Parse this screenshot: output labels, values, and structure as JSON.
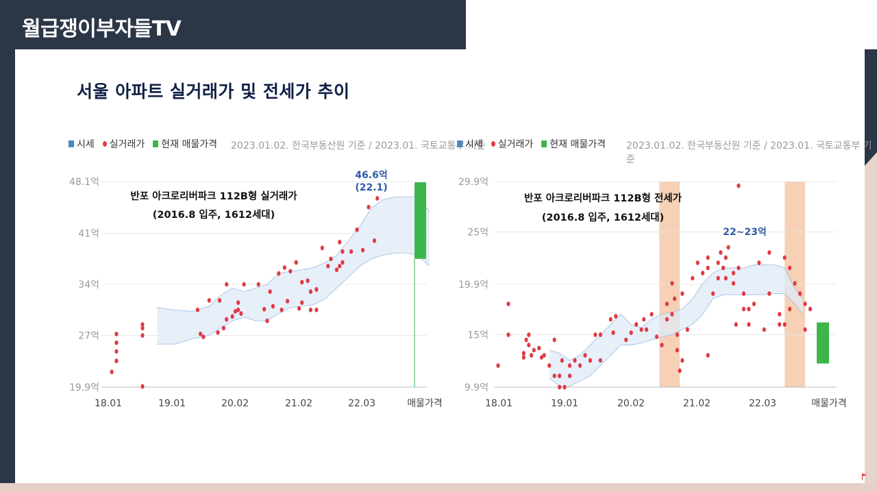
{
  "channel": {
    "title": "월급쟁이부자들TV"
  },
  "slide": {
    "title": "서울 아파트 실거래가 및 전세가 추이"
  },
  "colors": {
    "band": "#dfe9f7",
    "band_line": "#8aaedc",
    "dot": "#e03a46",
    "listing": "#3cb64a",
    "highlight": "#f5c9a8",
    "annotation": "#2f5ba8",
    "dark": "#2b3647"
  },
  "chart_data": [
    {
      "type": "scatter",
      "title": "반포 아크로리버파크 112B형 실거래가",
      "subtitle": "(2016.8 입주, 1612세대)",
      "legend": {
        "band": "시세",
        "dots": "실거래가",
        "bar": "현재 매물가격"
      },
      "source": "2023.01.02. 한국부동산원 기준 / 2023.01. 국토교통부 기준",
      "y_ticks": [
        "48.1억",
        "41억",
        "34억",
        "27억",
        "19.9억"
      ],
      "y_tick_values": [
        48.1,
        41,
        34,
        27,
        19.9
      ],
      "ylim": [
        19.9,
        48.1
      ],
      "x_ticks": [
        "18.01",
        "19.01",
        "20.02",
        "21.02",
        "22.03",
        "매물가격"
      ],
      "x_tick_values": [
        0,
        12,
        25,
        37,
        50
      ],
      "annotation": {
        "line1": "46.6억",
        "line2": "(22.1)"
      },
      "band": [
        {
          "x": 9,
          "lo": 25.8,
          "hi": 30.8
        },
        {
          "x": 12,
          "lo": 25.8,
          "hi": 30.5
        },
        {
          "x": 15,
          "lo": 26.5,
          "hi": 30.3
        },
        {
          "x": 18,
          "lo": 27.0,
          "hi": 31.0
        },
        {
          "x": 20,
          "lo": 28.0,
          "hi": 32.5
        },
        {
          "x": 22,
          "lo": 29.0,
          "hi": 33.5
        },
        {
          "x": 24,
          "lo": 29.5,
          "hi": 33.0
        },
        {
          "x": 26,
          "lo": 29.0,
          "hi": 33.5
        },
        {
          "x": 28,
          "lo": 29.0,
          "hi": 34.0
        },
        {
          "x": 30,
          "lo": 30.0,
          "hi": 35.5
        },
        {
          "x": 32,
          "lo": 30.8,
          "hi": 35.8
        },
        {
          "x": 34,
          "lo": 31.0,
          "hi": 36.0
        },
        {
          "x": 36,
          "lo": 31.2,
          "hi": 36.3
        },
        {
          "x": 38,
          "lo": 32.0,
          "hi": 37.0
        },
        {
          "x": 40,
          "lo": 33.5,
          "hi": 38.0
        },
        {
          "x": 42,
          "lo": 35.0,
          "hi": 40.0
        },
        {
          "x": 44,
          "lo": 36.5,
          "hi": 42.0
        },
        {
          "x": 46,
          "lo": 37.5,
          "hi": 44.5
        },
        {
          "x": 48,
          "lo": 38.0,
          "hi": 45.6
        },
        {
          "x": 50,
          "lo": 38.3,
          "hi": 46.0
        },
        {
          "x": 52,
          "lo": 38.3,
          "hi": 46.0
        },
        {
          "x": 54,
          "lo": 38.0,
          "hi": 46.0
        },
        {
          "x": 56,
          "lo": 36.5,
          "hi": 44.0
        }
      ],
      "dots": [
        [
          1.2,
          22.0
        ],
        [
          2,
          23.5
        ],
        [
          2,
          24.8
        ],
        [
          2,
          26.0
        ],
        [
          2,
          27.2
        ],
        [
          6.5,
          27.0
        ],
        [
          6.5,
          28.0
        ],
        [
          6.5,
          28.5
        ],
        [
          6.5,
          20.0
        ],
        [
          16,
          30.5
        ],
        [
          16.5,
          27.2
        ],
        [
          17,
          26.8
        ],
        [
          18,
          31.8
        ],
        [
          19.5,
          27.4
        ],
        [
          19.8,
          31.8
        ],
        [
          20.5,
          28.0
        ],
        [
          21,
          29.2
        ],
        [
          21,
          34.0
        ],
        [
          22,
          29.6
        ],
        [
          22.5,
          30.3
        ],
        [
          23,
          31.5
        ],
        [
          23,
          30.5
        ],
        [
          23.5,
          30.0
        ],
        [
          24,
          34.0
        ],
        [
          26.5,
          34.0
        ],
        [
          27.5,
          30.6
        ],
        [
          28,
          29.0
        ],
        [
          28.5,
          33.0
        ],
        [
          29,
          31.0
        ],
        [
          30,
          35.5
        ],
        [
          30.5,
          30.5
        ],
        [
          31.5,
          31.7
        ],
        [
          31,
          36.3
        ],
        [
          32,
          35.8
        ],
        [
          33,
          37.0
        ],
        [
          33.5,
          30.7
        ],
        [
          34,
          31.5
        ],
        [
          34,
          34.3
        ],
        [
          35,
          34.5
        ],
        [
          35.5,
          30.5
        ],
        [
          35.5,
          33.0
        ],
        [
          36.5,
          30.5
        ],
        [
          36.5,
          33.3
        ],
        [
          37.5,
          39.0
        ],
        [
          38.5,
          36.5
        ],
        [
          39,
          37.5
        ],
        [
          40,
          36.0
        ],
        [
          40.5,
          39.8
        ],
        [
          40.5,
          36.5
        ],
        [
          41,
          38.5
        ],
        [
          41,
          37.0
        ],
        [
          42.5,
          38.5
        ],
        [
          43.5,
          41.5
        ],
        [
          44.5,
          38.7
        ],
        [
          45.5,
          44.6
        ],
        [
          46.5,
          40.0
        ],
        [
          47,
          45.8
        ]
      ],
      "listing": {
        "lo": 37.5,
        "hi": 48.0
      }
    },
    {
      "type": "scatter",
      "title": "반포 아크로리버파크 112B형 전세가",
      "subtitle": "(2016.8 입주, 1612세대)",
      "legend": {
        "band": "시세",
        "dots": "실거래가",
        "bar": "현재 매물가격"
      },
      "source": "2023.01.02. 한국부동산원 기준 / 2023.01. 국토교통부 기준",
      "y_ticks": [
        "29.9억",
        "25억",
        "19.9억",
        "15억",
        "9.9억"
      ],
      "y_tick_values": [
        29.9,
        25,
        19.9,
        15,
        9.9
      ],
      "ylim": [
        9.9,
        29.9
      ],
      "x_ticks": [
        "18.01",
        "19.01",
        "20.02",
        "21.02",
        "22.03",
        "매물가격"
      ],
      "x_tick_values": [
        0,
        12,
        25,
        37,
        50
      ],
      "annotation": {
        "line1": "22~23억"
      },
      "highlight_ranges": [
        [
          31.5,
          35.5
        ],
        [
          56,
          60
        ]
      ],
      "band": [
        {
          "x": 10,
          "lo": 10.8,
          "hi": 13.5
        },
        {
          "x": 12,
          "lo": 10.0,
          "hi": 13.2
        },
        {
          "x": 14,
          "lo": 10.0,
          "hi": 12.5
        },
        {
          "x": 16,
          "lo": 10.5,
          "hi": 13.0
        },
        {
          "x": 18,
          "lo": 11.0,
          "hi": 14.0
        },
        {
          "x": 20,
          "lo": 12.0,
          "hi": 15.0
        },
        {
          "x": 22,
          "lo": 13.0,
          "hi": 16.0
        },
        {
          "x": 24,
          "lo": 14.0,
          "hi": 17.0
        },
        {
          "x": 26,
          "lo": 14.0,
          "hi": 16.0
        },
        {
          "x": 28,
          "lo": 14.2,
          "hi": 15.7
        },
        {
          "x": 30,
          "lo": 14.5,
          "hi": 16.5
        },
        {
          "x": 32,
          "lo": 14.8,
          "hi": 17.0
        },
        {
          "x": 34,
          "lo": 15.0,
          "hi": 17.2
        },
        {
          "x": 36,
          "lo": 15.5,
          "hi": 17.5
        },
        {
          "x": 38,
          "lo": 16.0,
          "hi": 18.5
        },
        {
          "x": 40,
          "lo": 17.0,
          "hi": 20.0
        },
        {
          "x": 42,
          "lo": 18.5,
          "hi": 21.0
        },
        {
          "x": 44,
          "lo": 18.9,
          "hi": 21.5
        },
        {
          "x": 46,
          "lo": 18.9,
          "hi": 21.5
        },
        {
          "x": 48,
          "lo": 18.9,
          "hi": 21.5
        },
        {
          "x": 50,
          "lo": 18.9,
          "hi": 21.8
        },
        {
          "x": 52,
          "lo": 18.9,
          "hi": 21.8
        },
        {
          "x": 54,
          "lo": 19.0,
          "hi": 21.8
        },
        {
          "x": 56,
          "lo": 19.0,
          "hi": 21.5
        },
        {
          "x": 58,
          "lo": 18.0,
          "hi": 19.5
        },
        {
          "x": 59.5,
          "lo": 17.0,
          "hi": 18.5
        }
      ],
      "dots": [
        [
          0,
          12.0
        ],
        [
          2,
          15.0
        ],
        [
          2,
          18.0
        ],
        [
          5,
          12.8
        ],
        [
          5,
          13.2
        ],
        [
          5.5,
          14.5
        ],
        [
          6,
          15.0
        ],
        [
          6,
          14.0
        ],
        [
          6.5,
          13.0
        ],
        [
          7,
          13.5
        ],
        [
          8,
          13.7
        ],
        [
          8.5,
          12.8
        ],
        [
          9,
          13.0
        ],
        [
          10,
          12.0
        ],
        [
          11,
          11.0
        ],
        [
          11,
          14.5
        ],
        [
          12,
          9.9
        ],
        [
          12,
          11.0
        ],
        [
          12.5,
          12.5
        ],
        [
          13,
          9.9
        ],
        [
          14,
          12.0
        ],
        [
          14,
          11.0
        ],
        [
          15,
          12.5
        ],
        [
          16,
          12.0
        ],
        [
          17,
          13.0
        ],
        [
          18,
          12.5
        ],
        [
          19,
          15.0
        ],
        [
          20,
          12.5
        ],
        [
          20,
          15.0
        ],
        [
          22,
          16.5
        ],
        [
          22.5,
          15.2
        ],
        [
          23,
          16.8
        ],
        [
          25,
          14.5
        ],
        [
          26,
          15.2
        ],
        [
          27,
          16.0
        ],
        [
          28,
          15.5
        ],
        [
          28.5,
          16.5
        ],
        [
          29,
          15.5
        ],
        [
          30,
          17.0
        ],
        [
          31,
          14.8
        ],
        [
          32,
          14.0
        ],
        [
          33,
          18.0
        ],
        [
          33,
          16.5
        ],
        [
          34,
          17.0
        ],
        [
          34,
          20.0
        ],
        [
          34.5,
          18.5
        ],
        [
          35,
          13.5
        ],
        [
          35,
          15.0
        ],
        [
          35.5,
          11.5
        ],
        [
          36,
          12.5
        ],
        [
          36,
          19.0
        ],
        [
          37,
          15.5
        ],
        [
          38,
          20.5
        ],
        [
          39,
          22.0
        ],
        [
          40,
          21.0
        ],
        [
          41,
          21.5
        ],
        [
          41,
          22.5
        ],
        [
          41,
          13.0
        ],
        [
          42,
          19.0
        ],
        [
          43,
          22.0
        ],
        [
          43,
          20.5
        ],
        [
          43.5,
          23.0
        ],
        [
          44,
          21.5
        ],
        [
          44.5,
          22.5
        ],
        [
          44.5,
          20.5
        ],
        [
          45,
          23.5
        ],
        [
          46,
          21.0
        ],
        [
          46,
          20.0
        ],
        [
          46.5,
          16.0
        ],
        [
          47,
          21.5
        ],
        [
          47,
          29.5
        ],
        [
          48,
          19.0
        ],
        [
          48,
          17.5
        ],
        [
          49,
          17.5
        ],
        [
          49,
          16.0
        ],
        [
          50,
          18.0
        ],
        [
          51,
          22.0
        ],
        [
          52,
          15.5
        ],
        [
          53,
          19.0
        ],
        [
          53,
          23.0
        ],
        [
          55,
          17.0
        ],
        [
          55,
          16.0
        ],
        [
          56,
          22.5
        ],
        [
          56,
          16.0
        ],
        [
          57,
          21.5
        ],
        [
          57,
          17.5
        ],
        [
          58,
          20.0
        ],
        [
          59,
          19.0
        ],
        [
          60,
          18.0
        ],
        [
          60,
          15.5
        ],
        [
          61,
          17.5
        ]
      ],
      "listing": {
        "lo": 12.2,
        "hi": 16.2
      }
    }
  ]
}
